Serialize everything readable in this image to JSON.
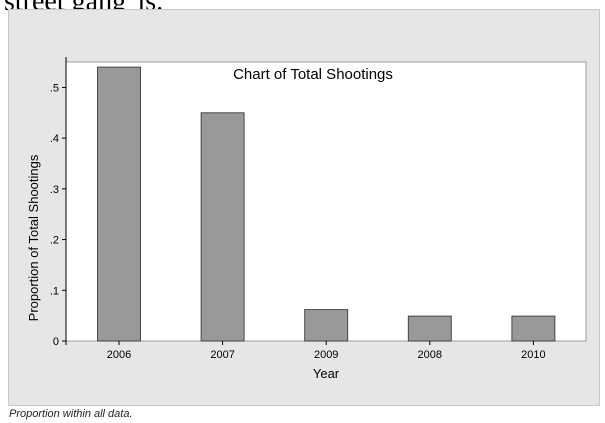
{
  "page": {
    "header_fragment": "street gang\"is.",
    "footnote": "Proportion within all data."
  },
  "colors": {
    "figure_background": "#e6e6e6",
    "plot_background": "#ffffff",
    "bar_fill": "#999999",
    "bar_stroke": "#3a3a3a",
    "axis": "#000000"
  },
  "chart_data": {
    "type": "bar",
    "title": "Chart of Total Shootings",
    "xlabel": "Year",
    "ylabel": "Proportion of Total Shootings",
    "categories": [
      "2006",
      "2007",
      "2009",
      "2008",
      "2010"
    ],
    "values": [
      0.54,
      0.45,
      0.062,
      0.049,
      0.049
    ],
    "ylim": [
      0,
      0.56
    ],
    "yticks": [
      0,
      0.1,
      0.2,
      0.3,
      0.4,
      0.5
    ],
    "ytick_labels": [
      "0",
      ".1",
      ".2",
      ".3",
      ".4",
      ".5"
    ],
    "grid": false,
    "legend": "none"
  }
}
